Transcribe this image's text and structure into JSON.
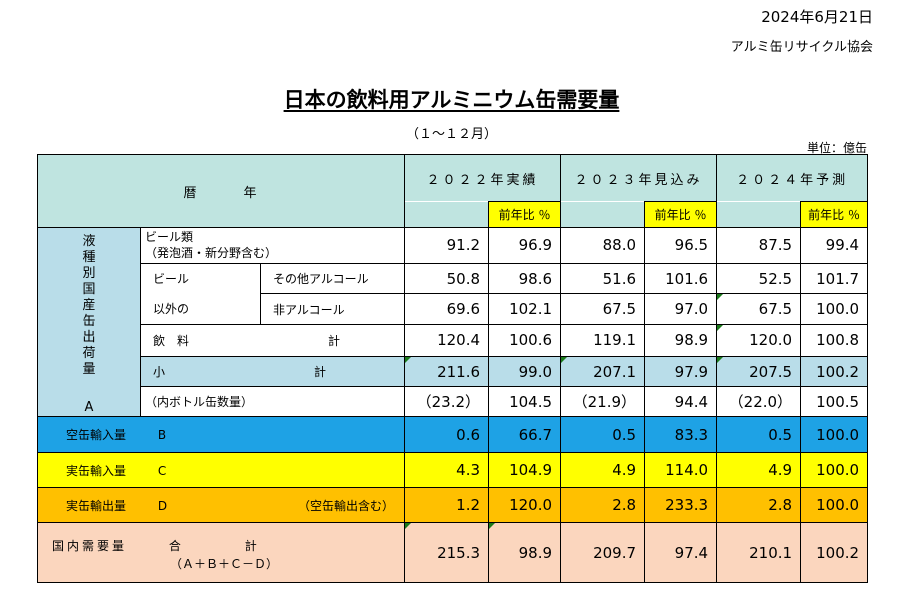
{
  "header": {
    "date": "2024年6月21日",
    "org": "アルミ缶リサイクル協会",
    "title": "日本の飲料用アルミニウム缶需要量",
    "period": "（１～１２月）",
    "unit": "単位：億缶"
  },
  "table": {
    "corner_label": "暦　　　年",
    "year_cols": [
      "２０２２年実績",
      "２０２３年見込み",
      "２０２４年予測"
    ],
    "yoy_label": "前年比 ％",
    "side_label": [
      "液",
      "種",
      "別",
      "国",
      "産",
      "缶",
      "出",
      "荷",
      "量"
    ],
    "side_letter": "A",
    "rows": {
      "beer": {
        "label": "ビール類",
        "note": "（発泡酒・新分野含む）",
        "values": [
          "91.2",
          "96.9",
          "88.0",
          "96.5",
          "87.5",
          "99.4"
        ]
      },
      "nonbeer_group": [
        "ビール",
        "以外の"
      ],
      "other_alcohol": {
        "label": "その他アルコール",
        "values": [
          "50.8",
          "98.6",
          "51.6",
          "101.6",
          "52.5",
          "101.7"
        ]
      },
      "non_alcohol": {
        "label": "非アルコール",
        "values": [
          "69.6",
          "102.1",
          "67.5",
          "97.0",
          "67.5",
          "100.0"
        ]
      },
      "beverage_total": {
        "label": "飲　料",
        "label2": "計",
        "values": [
          "120.4",
          "100.6",
          "119.1",
          "98.9",
          "120.0",
          "100.8"
        ]
      },
      "subtotal": {
        "label": "小",
        "label2": "計",
        "values": [
          "211.6",
          "99.0",
          "207.1",
          "97.9",
          "207.5",
          "100.2"
        ]
      },
      "bottle_can": {
        "label": "（内ボトル缶数量）",
        "values": [
          "（23.2）",
          "104.5",
          "（21.9）",
          "94.4",
          "（22.0）",
          "100.5"
        ]
      },
      "empty_import": {
        "label": "空缶輸入量",
        "letter": "B",
        "values": [
          "0.6",
          "66.7",
          "0.5",
          "83.3",
          "0.5",
          "100.0"
        ]
      },
      "full_import": {
        "label": "実缶輸入量",
        "letter": "C",
        "values": [
          "4.3",
          "104.9",
          "4.9",
          "114.0",
          "4.9",
          "100.0"
        ]
      },
      "full_export": {
        "label": "実缶輸出量",
        "letter": "D",
        "note": "（空缶輸出含む）",
        "values": [
          "1.2",
          "120.0",
          "2.8",
          "233.3",
          "2.8",
          "100.0"
        ]
      },
      "domestic": {
        "label": "国内需要量",
        "label2": "合",
        "label3": "計",
        "formula": "（Ａ＋Ｂ＋Ｃ－Ｄ）",
        "values": [
          "215.3",
          "98.9",
          "209.7",
          "97.4",
          "210.1",
          "100.2"
        ]
      }
    }
  },
  "colors": {
    "header_teal": "#bfe4e0",
    "light_blue": "#b9dde9",
    "blue": "#1ea2e5",
    "yellow": "#ffff00",
    "orange": "#ffc000",
    "peach": "#fbd6be"
  }
}
